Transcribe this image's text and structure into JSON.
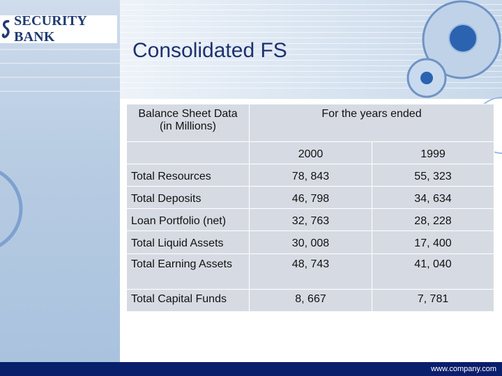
{
  "brand": {
    "name": "SECURITY BANK",
    "logo_icon": "security-bank-emblem-icon",
    "color": "#1f3a73"
  },
  "slide": {
    "title": "Consolidated FS",
    "footer_url": "www.company.com"
  },
  "table": {
    "header_left": "Balance Sheet Data (in Millions)",
    "header_group": "For the years ended",
    "years": [
      "2000",
      "1999"
    ],
    "rows": [
      {
        "label": "Total Resources",
        "v2000": "78, 843",
        "v1999": "55, 323"
      },
      {
        "label": "Total Deposits",
        "v2000": "46, 798",
        "v1999": "34, 634"
      },
      {
        "label": "Loan Portfolio (net)",
        "v2000": "32, 763",
        "v1999": "28, 228"
      },
      {
        "label": "Total Liquid Assets",
        "v2000": "30, 008",
        "v1999": "17, 400"
      },
      {
        "label": "Total Earning Assets",
        "v2000": "48, 743",
        "v1999": "41, 040"
      },
      {
        "label": "Total Capital Funds",
        "v2000": "8, 667",
        "v1999": "7, 781"
      }
    ]
  },
  "colors": {
    "title": "#1f3170",
    "cell_bg": "#d6dbe3",
    "bottom_bar": "#0a1f6b"
  }
}
